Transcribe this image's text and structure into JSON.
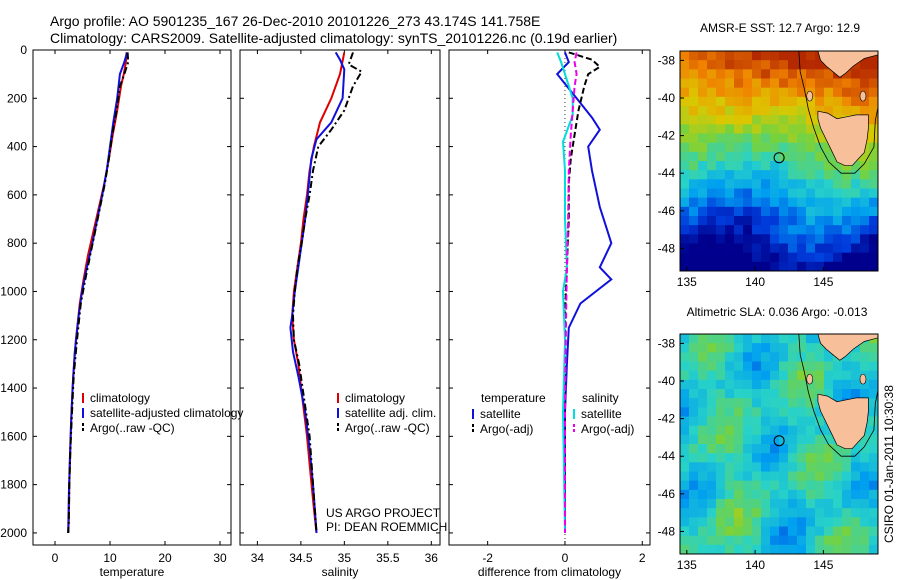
{
  "header": {
    "line1": "Argo profile: AO 5901235_167 26-Dec-2010 20101226_273 43.174S 141.758E",
    "line2": "Climatology: CARS2009. Satellite-adjusted climatology: synTS_20101226.nc (0.19d earlier)"
  },
  "colors": {
    "climatology": "#dd0000",
    "satellite": "#1010dd",
    "argo": "#000000",
    "argo_salinity_diff": "#ee00ee",
    "satellite_salinity": "#00dddd"
  },
  "chart_data": [
    {
      "type": "line",
      "xlabel": "temperature",
      "ylabel": "",
      "xlim": [
        -4,
        32
      ],
      "ylim": [
        2050,
        0
      ],
      "x_ticks": [
        "0",
        "10",
        "20",
        "30"
      ],
      "y_ticks": [
        "0",
        "200",
        "400",
        "600",
        "800",
        "1000",
        "1200",
        "1400",
        "1600",
        "1800",
        "2000"
      ],
      "legend": [
        "climatology",
        "satellite-adjusted climatology",
        "Argo(..raw -QC)"
      ],
      "legend_position": "lower-right",
      "series": [
        {
          "name": "climatology",
          "color": "#dd0000",
          "style": "solid",
          "points": [
            [
              13.0,
              10
            ],
            [
              12.9,
              50
            ],
            [
              12.5,
              100
            ],
            [
              12.0,
              150
            ],
            [
              11.3,
              250
            ],
            [
              10.5,
              350
            ],
            [
              9.8,
              450
            ],
            [
              9.0,
              550
            ],
            [
              8.0,
              650
            ],
            [
              7.0,
              750
            ],
            [
              6.0,
              850
            ],
            [
              5.2,
              950
            ],
            [
              4.5,
              1050
            ],
            [
              3.8,
              1200
            ],
            [
              3.3,
              1350
            ],
            [
              3.0,
              1500
            ],
            [
              2.8,
              1650
            ],
            [
              2.6,
              1800
            ],
            [
              2.5,
              1950
            ],
            [
              2.4,
              2000
            ]
          ]
        },
        {
          "name": "satellite-adjusted climatology",
          "color": "#1010dd",
          "style": "solid",
          "points": [
            [
              13.1,
              10
            ],
            [
              12.6,
              50
            ],
            [
              11.8,
              100
            ],
            [
              11.3,
              200
            ],
            [
              10.6,
              300
            ],
            [
              10.0,
              400
            ],
            [
              9.4,
              500
            ],
            [
              8.6,
              600
            ],
            [
              7.7,
              700
            ],
            [
              6.8,
              800
            ],
            [
              5.8,
              900
            ],
            [
              4.9,
              1000
            ],
            [
              4.3,
              1100
            ],
            [
              3.6,
              1250
            ],
            [
              3.2,
              1400
            ],
            [
              2.9,
              1550
            ],
            [
              2.7,
              1700
            ],
            [
              2.5,
              1850
            ],
            [
              2.4,
              2000
            ]
          ]
        },
        {
          "name": "Argo(..raw -QC)",
          "color": "#000000",
          "style": "dash-dot",
          "points": [
            [
              13.2,
              10
            ],
            [
              13.3,
              50
            ],
            [
              12.6,
              100
            ],
            [
              11.8,
              150
            ],
            [
              11.2,
              250
            ],
            [
              10.4,
              350
            ],
            [
              9.8,
              450
            ],
            [
              9.1,
              550
            ],
            [
              8.2,
              650
            ],
            [
              7.3,
              750
            ],
            [
              6.4,
              850
            ],
            [
              5.5,
              950
            ],
            [
              4.7,
              1050
            ],
            [
              4.0,
              1200
            ],
            [
              3.4,
              1350
            ],
            [
              3.1,
              1500
            ],
            [
              2.8,
              1650
            ],
            [
              2.6,
              1800
            ],
            [
              2.5,
              1950
            ],
            [
              2.4,
              2000
            ]
          ]
        }
      ]
    },
    {
      "type": "line",
      "xlabel": "salinity",
      "xlim": [
        33.8,
        36.1
      ],
      "ylim": [
        2050,
        0
      ],
      "x_ticks": [
        "34",
        "34.5",
        "35",
        "35.5",
        "36"
      ],
      "legend": [
        "climatology",
        "satellite adj. clim.",
        "Argo(..raw -QC)"
      ],
      "legend_position": "lower-right",
      "annotations": [
        "US ARGO PROJECT",
        "PI: DEAN ROEMMICH"
      ],
      "series": [
        {
          "name": "climatology",
          "color": "#dd0000",
          "style": "solid",
          "points": [
            [
              35.0,
              10
            ],
            [
              34.95,
              100
            ],
            [
              34.85,
              200
            ],
            [
              34.72,
              300
            ],
            [
              34.65,
              400
            ],
            [
              34.6,
              500
            ],
            [
              34.57,
              600
            ],
            [
              34.53,
              700
            ],
            [
              34.5,
              800
            ],
            [
              34.46,
              900
            ],
            [
              34.42,
              1000
            ],
            [
              34.4,
              1100
            ],
            [
              34.42,
              1200
            ],
            [
              34.47,
              1300
            ],
            [
              34.52,
              1450
            ],
            [
              34.57,
              1600
            ],
            [
              34.61,
              1750
            ],
            [
              34.65,
              1900
            ],
            [
              34.68,
              2000
            ]
          ]
        },
        {
          "name": "satellite adj. clim.",
          "color": "#1010dd",
          "style": "solid",
          "points": [
            [
              34.9,
              10
            ],
            [
              34.95,
              40
            ],
            [
              35.0,
              80
            ],
            [
              34.98,
              200
            ],
            [
              34.85,
              300
            ],
            [
              34.68,
              370
            ],
            [
              34.62,
              450
            ],
            [
              34.58,
              600
            ],
            [
              34.55,
              700
            ],
            [
              34.51,
              800
            ],
            [
              34.47,
              900
            ],
            [
              34.43,
              1000
            ],
            [
              34.4,
              1100
            ],
            [
              34.38,
              1150
            ],
            [
              34.41,
              1250
            ],
            [
              34.47,
              1350
            ],
            [
              34.55,
              1500
            ],
            [
              34.6,
              1650
            ],
            [
              34.64,
              1800
            ],
            [
              34.67,
              1950
            ],
            [
              34.68,
              2000
            ]
          ]
        },
        {
          "name": "Argo(..raw -QC)",
          "color": "#000000",
          "style": "dash-dot",
          "points": [
            [
              35.1,
              10
            ],
            [
              35.05,
              60
            ],
            [
              35.2,
              90
            ],
            [
              35.1,
              150
            ],
            [
              35.0,
              250
            ],
            [
              34.85,
              330
            ],
            [
              34.7,
              400
            ],
            [
              34.64,
              500
            ],
            [
              34.6,
              600
            ],
            [
              34.55,
              700
            ],
            [
              34.51,
              800
            ],
            [
              34.46,
              900
            ],
            [
              34.43,
              1000
            ],
            [
              34.41,
              1100
            ],
            [
              34.42,
              1200
            ],
            [
              34.48,
              1300
            ],
            [
              34.54,
              1450
            ],
            [
              34.6,
              1600
            ],
            [
              34.63,
              1750
            ],
            [
              34.66,
              1900
            ],
            [
              34.68,
              2000
            ]
          ]
        }
      ]
    },
    {
      "type": "line",
      "xlabel": "difference from climatology",
      "xlim": [
        -3,
        2.2
      ],
      "ylim": [
        2050,
        0
      ],
      "x_ticks": [
        "-2",
        "0",
        "2"
      ],
      "legend_groups": [
        {
          "title": "temperature",
          "items": [
            "satellite",
            "Argo(-adj)"
          ]
        },
        {
          "title": "salinity",
          "items": [
            "satellite",
            "Argo(-adj)"
          ]
        }
      ],
      "legend_position": "lower-center",
      "series": [
        {
          "name": "satellite",
          "group": "temperature",
          "color": "#1010dd",
          "style": "solid",
          "points": [
            [
              0.0,
              10
            ],
            [
              0.1,
              50
            ],
            [
              -0.2,
              100
            ],
            [
              0.3,
              200
            ],
            [
              0.7,
              280
            ],
            [
              0.9,
              330
            ],
            [
              0.6,
              400
            ],
            [
              0.7,
              500
            ],
            [
              0.9,
              650
            ],
            [
              1.1,
              750
            ],
            [
              1.2,
              800
            ],
            [
              0.9,
              900
            ],
            [
              1.2,
              950
            ],
            [
              0.4,
              1050
            ],
            [
              0.1,
              1150
            ],
            [
              0.05,
              1300
            ],
            [
              0.0,
              1500
            ],
            [
              0.0,
              2000
            ]
          ]
        },
        {
          "name": "Argo(-adj)",
          "group": "temperature",
          "color": "#000000",
          "style": "dashed",
          "points": [
            [
              0.1,
              10
            ],
            [
              0.7,
              40
            ],
            [
              0.9,
              70
            ],
            [
              0.6,
              100
            ],
            [
              0.5,
              150
            ],
            [
              0.35,
              250
            ],
            [
              0.25,
              350
            ],
            [
              0.15,
              450
            ],
            [
              0.1,
              550
            ],
            [
              0.1,
              700
            ],
            [
              0.05,
              900
            ],
            [
              0.0,
              1100
            ],
            [
              0.0,
              1500
            ],
            [
              0.0,
              2000
            ]
          ]
        },
        {
          "name": "satellite",
          "group": "salinity",
          "color": "#00dddd",
          "style": "solid",
          "points": [
            [
              -0.2,
              10
            ],
            [
              -0.1,
              50
            ],
            [
              0.0,
              100
            ],
            [
              0.2,
              200
            ],
            [
              0.2,
              270
            ],
            [
              -0.05,
              380
            ],
            [
              0.0,
              500
            ],
            [
              0.0,
              700
            ],
            [
              0.05,
              900
            ],
            [
              -0.05,
              1000
            ],
            [
              0.0,
              1200
            ],
            [
              -0.05,
              1500
            ],
            [
              0.0,
              2000
            ]
          ]
        },
        {
          "name": "Argo(-adj)",
          "group": "salinity",
          "color": "#ee00ee",
          "style": "dashed",
          "points": [
            [
              0.3,
              10
            ],
            [
              0.25,
              50
            ],
            [
              0.3,
              100
            ],
            [
              0.25,
              150
            ],
            [
              0.2,
              250
            ],
            [
              0.15,
              350
            ],
            [
              0.1,
              500
            ],
            [
              0.08,
              700
            ],
            [
              0.05,
              900
            ],
            [
              0.03,
              1100
            ],
            [
              0.0,
              1500
            ],
            [
              0.0,
              2000
            ]
          ]
        }
      ]
    },
    {
      "type": "heatmap",
      "title": "AMSR-E SST: 12.7 Argo: 12.9",
      "xlim": [
        134.5,
        149
      ],
      "ylim": [
        -49.2,
        -37.5
      ],
      "x_ticks": [
        "135",
        "140",
        "145"
      ],
      "y_ticks": [
        "-38",
        "-40",
        "-42",
        "-44",
        "-46",
        "-48"
      ],
      "marker": [
        141.758,
        -43.174
      ]
    },
    {
      "type": "heatmap",
      "title": "Altimetric SLA: 0.036 Argo: -0.013",
      "xlim": [
        134.5,
        149
      ],
      "ylim": [
        -49.2,
        -37.5
      ],
      "x_ticks": [
        "135",
        "140",
        "145"
      ],
      "y_ticks": [
        "-38",
        "-40",
        "-42",
        "-44",
        "-46",
        "-48"
      ],
      "marker": [
        141.758,
        -43.174
      ]
    }
  ],
  "side_label": "CSIRO 01-Jan-2011 10:30:38"
}
